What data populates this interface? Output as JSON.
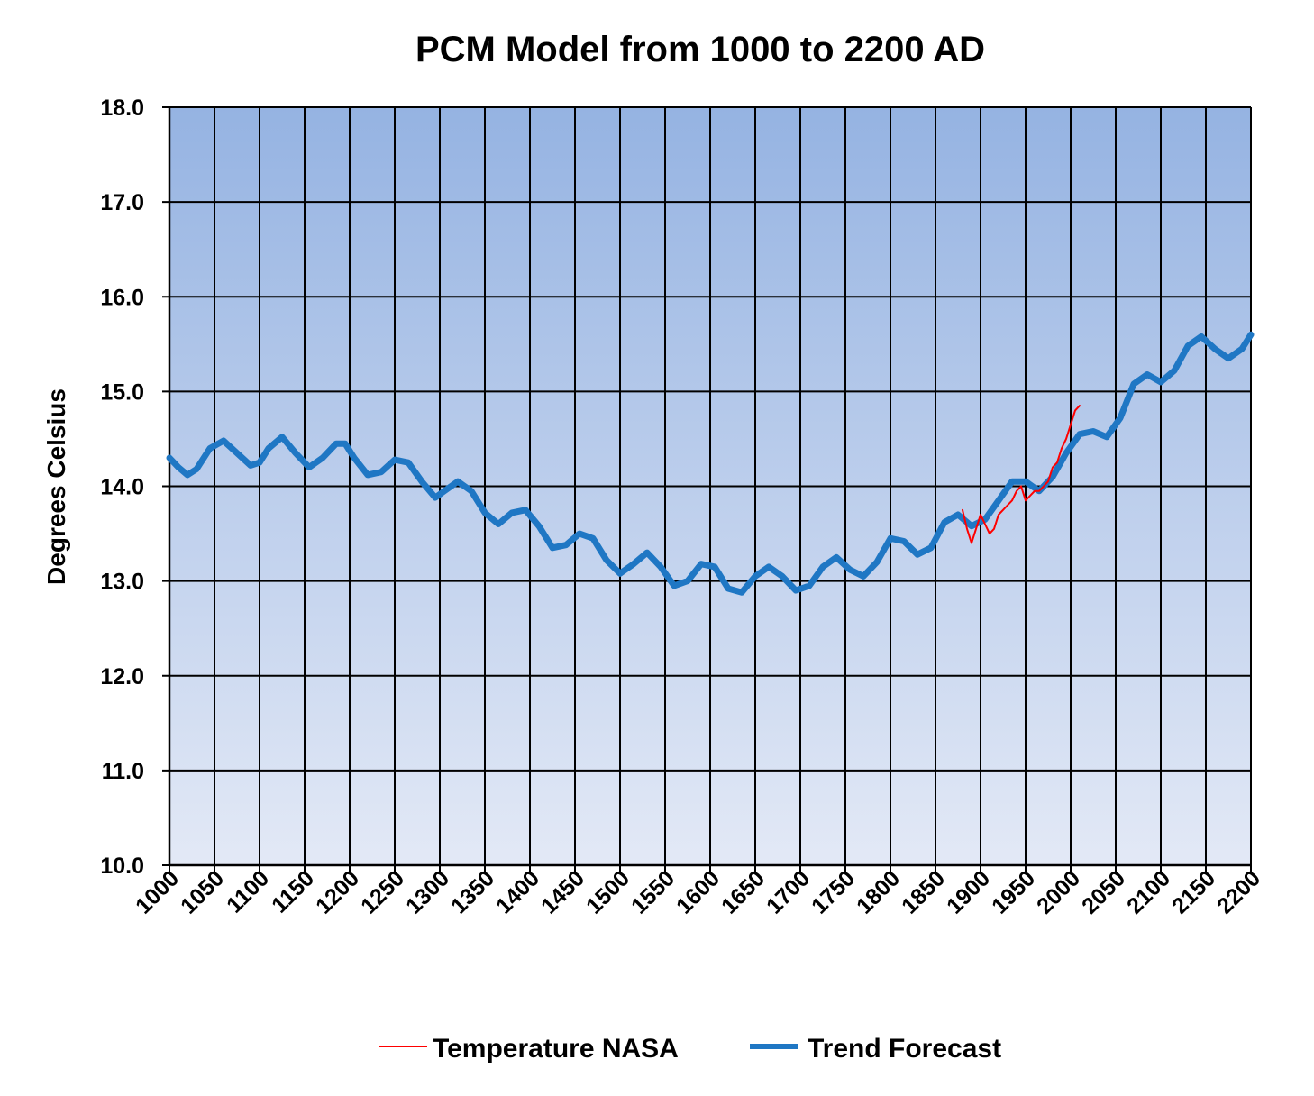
{
  "chart_data": {
    "type": "line",
    "title": "PCM Model from 1000 to 2200 AD",
    "xlabel": "",
    "ylabel": "Degrees Celsius",
    "xlim": [
      1000,
      2200
    ],
    "ylim": [
      10.0,
      18.0
    ],
    "x_ticks": [
      "1000",
      "1050",
      "1100",
      "1150",
      "1200",
      "1250",
      "1300",
      "1350",
      "1400",
      "1450",
      "1500",
      "1550",
      "1600",
      "1650",
      "1700",
      "1750",
      "1800",
      "1850",
      "1900",
      "1950",
      "2000",
      "2050",
      "2100",
      "2150",
      "2200"
    ],
    "y_ticks": [
      "10.0",
      "11.0",
      "12.0",
      "13.0",
      "14.0",
      "15.0",
      "16.0",
      "17.0",
      "18.0"
    ],
    "grid": true,
    "legend_position": "bottom",
    "background_gradient": [
      "#e3e9f6",
      "#95b3e2"
    ],
    "series": [
      {
        "name": "Temperature NASA",
        "color": "#ff0000",
        "x": [
          1880,
          1885,
          1890,
          1895,
          1900,
          1905,
          1910,
          1915,
          1920,
          1925,
          1930,
          1935,
          1940,
          1945,
          1950,
          1955,
          1960,
          1965,
          1970,
          1975,
          1980,
          1985,
          1990,
          1995,
          2000,
          2005,
          2010
        ],
        "y": [
          13.75,
          13.55,
          13.4,
          13.55,
          13.7,
          13.6,
          13.5,
          13.55,
          13.7,
          13.75,
          13.8,
          13.85,
          13.95,
          14.0,
          13.85,
          13.9,
          13.95,
          13.95,
          14.0,
          14.05,
          14.2,
          14.25,
          14.4,
          14.5,
          14.65,
          14.8,
          14.85
        ]
      },
      {
        "name": "Trend Forecast",
        "color": "#1f77c4",
        "x": [
          1000,
          1010,
          1020,
          1030,
          1045,
          1060,
          1075,
          1090,
          1100,
          1110,
          1125,
          1140,
          1155,
          1170,
          1185,
          1195,
          1205,
          1220,
          1235,
          1250,
          1265,
          1280,
          1295,
          1305,
          1320,
          1335,
          1350,
          1365,
          1380,
          1395,
          1410,
          1425,
          1440,
          1455,
          1470,
          1485,
          1500,
          1515,
          1530,
          1545,
          1560,
          1575,
          1590,
          1605,
          1620,
          1635,
          1650,
          1665,
          1680,
          1695,
          1710,
          1725,
          1740,
          1755,
          1770,
          1785,
          1800,
          1815,
          1830,
          1845,
          1860,
          1875,
          1890,
          1905,
          1920,
          1935,
          1950,
          1965,
          1980,
          1995,
          2010,
          2025,
          2040,
          2055,
          2070,
          2085,
          2100,
          2115,
          2130,
          2145,
          2160,
          2175,
          2190,
          2200
        ],
        "y": [
          14.3,
          14.2,
          14.12,
          14.18,
          14.4,
          14.48,
          14.35,
          14.22,
          14.25,
          14.4,
          14.52,
          14.35,
          14.2,
          14.3,
          14.45,
          14.45,
          14.3,
          14.12,
          14.15,
          14.28,
          14.25,
          14.05,
          13.88,
          13.95,
          14.05,
          13.95,
          13.72,
          13.6,
          13.72,
          13.75,
          13.58,
          13.35,
          13.38,
          13.5,
          13.45,
          13.22,
          13.08,
          13.18,
          13.3,
          13.15,
          12.95,
          13.0,
          13.18,
          13.15,
          12.92,
          12.88,
          13.05,
          13.15,
          13.05,
          12.9,
          12.95,
          13.15,
          13.25,
          13.12,
          13.05,
          13.2,
          13.45,
          13.42,
          13.28,
          13.35,
          13.62,
          13.7,
          13.58,
          13.65,
          13.85,
          14.05,
          14.05,
          13.95,
          14.1,
          14.35,
          14.55,
          14.58,
          14.52,
          14.72,
          15.08,
          15.18,
          15.1,
          15.22,
          15.48,
          15.58,
          15.45,
          15.35,
          15.45,
          15.6
        ]
      }
    ]
  }
}
